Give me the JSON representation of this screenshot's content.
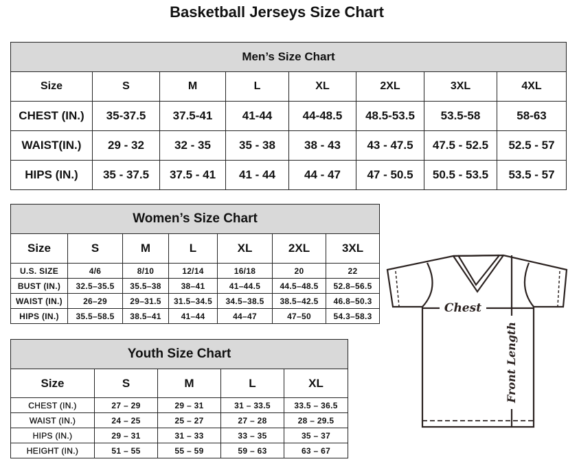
{
  "title": "Basketball Jerseys Size Chart",
  "men": {
    "caption": "Men’s Size Chart",
    "header": [
      "Size",
      "S",
      "M",
      "L",
      "XL",
      "2XL",
      "3XL",
      "4XL"
    ],
    "rows": [
      [
        "CHEST (IN.)",
        "35-37.5",
        "37.5-41",
        "41-44",
        "44-48.5",
        "48.5-53.5",
        "53.5-58",
        "58-63"
      ],
      [
        "WAIST(IN.)",
        "29 - 32",
        "32 - 35",
        "35 - 38",
        "38 - 43",
        "43 - 47.5",
        "47.5 - 52.5",
        "52.5 - 57"
      ],
      [
        "HIPS (IN.)",
        "35 - 37.5",
        "37.5 - 41",
        "41 - 44",
        "44 - 47",
        "47 - 50.5",
        "50.5 - 53.5",
        "53.5 - 57"
      ]
    ]
  },
  "women": {
    "caption": "Women’s Size Chart",
    "header": [
      "Size",
      "S",
      "M",
      "L",
      "XL",
      "2XL",
      "3XL"
    ],
    "rows": [
      [
        "U.S.  SIZE",
        "4/6",
        "8/10",
        "12/14",
        "16/18",
        "20",
        "22"
      ],
      [
        "BUST  (IN.)",
        "32.5–35.5",
        "35.5–38",
        "38–41",
        "41–44.5",
        "44.5–48.5",
        "52.8–56.5"
      ],
      [
        "WAIST  (IN.)",
        "26–29",
        "29–31.5",
        "31.5–34.5",
        "34.5–38.5",
        "38.5–42.5",
        "46.8–50.3"
      ],
      [
        "HIPS  (IN.)",
        "35.5–58.5",
        "38.5–41",
        "41–44",
        "44–47",
        "47–50",
        "54.3–58.3"
      ]
    ]
  },
  "youth": {
    "caption": "Youth Size Chart",
    "header": [
      "Size",
      "S",
      "M",
      "L",
      "XL"
    ],
    "rows": [
      [
        "CHEST  (IN.)",
        "27  –  29",
        "29  –  31",
        "31  –  33.5",
        "33.5  –  36.5"
      ],
      [
        "WAIST  (IN.)",
        "24  –  25",
        "25  –  27",
        "27  –  28",
        "28  –  29.5"
      ],
      [
        "HIPS  (IN.)",
        "29  –  31",
        "31  –  33",
        "33  –  35",
        "35  –  37"
      ],
      [
        "HEIGHT  (IN.)",
        "51  –  55",
        "55  –  59",
        "59  –  63",
        "63  –  67"
      ]
    ]
  },
  "diagram": {
    "chest_label": "Chest",
    "length_label": "Front Length",
    "icon": "t-shirt-icon"
  }
}
